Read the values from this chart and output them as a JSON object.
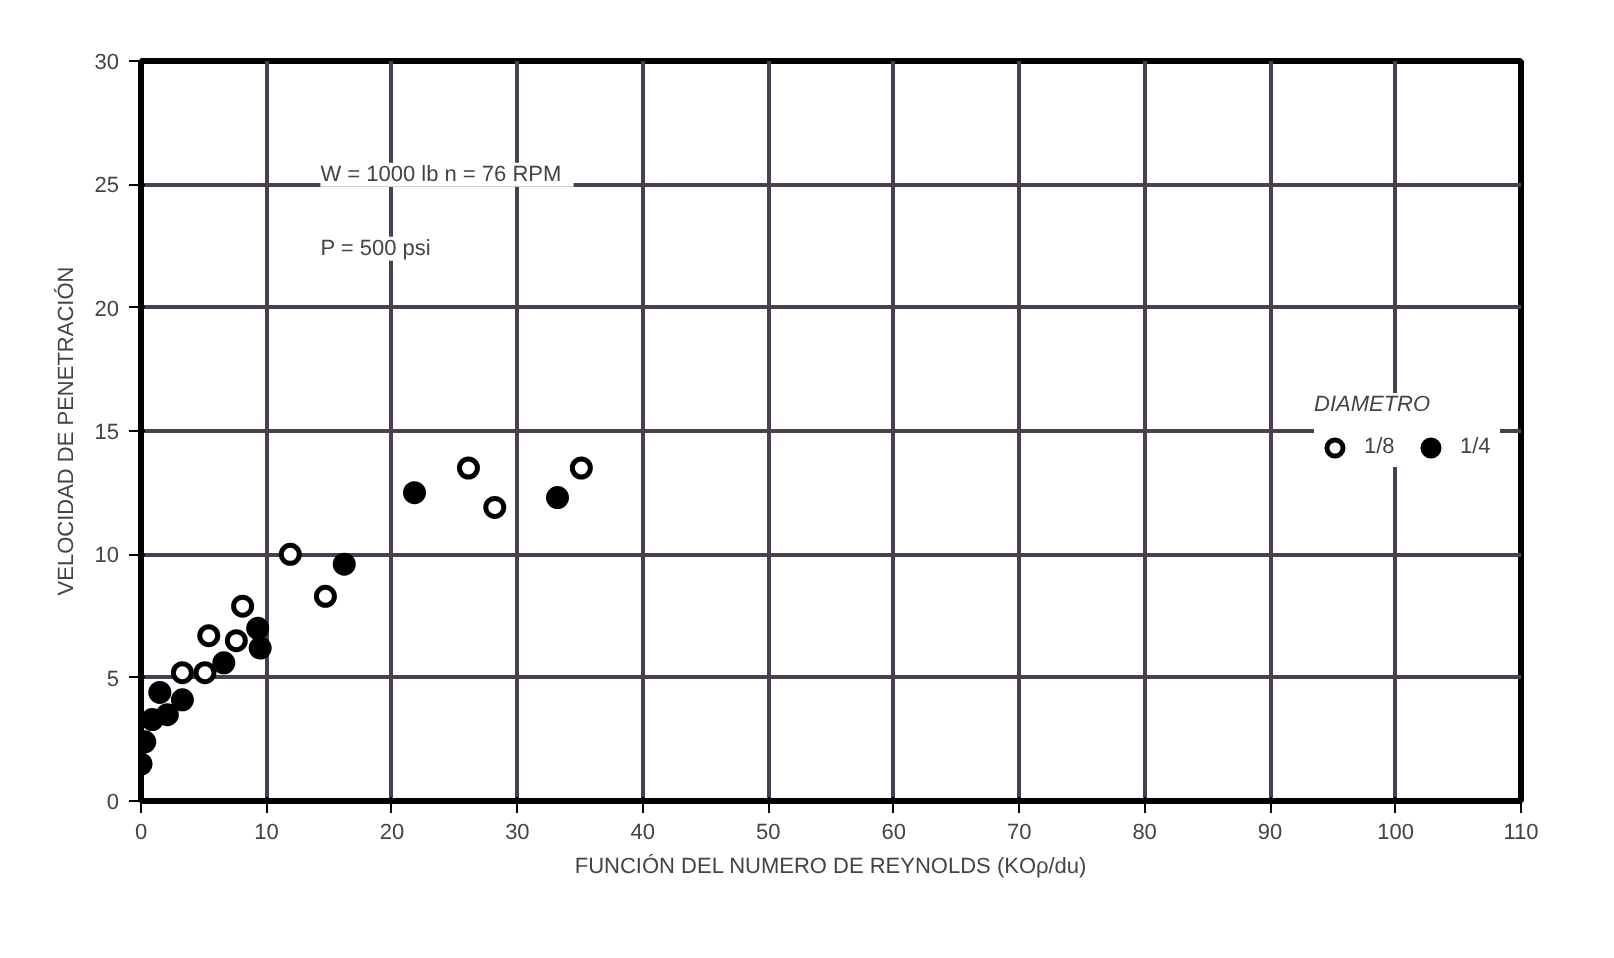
{
  "chart_data": {
    "type": "scatter",
    "xlabel": "FUNCIÓN DEL NUMERO DE REYNOLDS (KOρ/du)",
    "ylabel": "VELOCIDAD DE PENETRACIÓN",
    "annotations": [
      "W = 1000 lb   n = 76 RPM",
      "P = 500 psi"
    ],
    "legend_title": "DIAMETRO",
    "legend": "right",
    "grid": true,
    "marker": "circle",
    "xlim": [
      0,
      110
    ],
    "xticks": [
      0,
      10,
      20,
      30,
      40,
      50,
      60,
      70,
      80,
      90,
      100,
      110
    ],
    "ylim": [
      0,
      30
    ],
    "yticks": [
      0,
      5,
      10,
      15,
      20,
      25,
      30
    ],
    "series": [
      {
        "name": "1/8",
        "color": "#000000",
        "x": [
          26.1,
          35.1,
          28.2,
          11.9,
          14.7,
          5.4,
          7.6,
          3.3,
          5.1,
          8.1
        ],
        "values": [
          13.5,
          13.5,
          11.9,
          10.0,
          8.3,
          6.7,
          6.5,
          5.2,
          5.2,
          7.9
        ]
      },
      {
        "name": "1/4",
        "color": "#000000",
        "x": [
          21.8,
          33.2,
          16.2,
          9.3,
          9.5,
          6.6,
          1.5,
          3.3,
          0.9,
          2.1,
          0.3,
          0.0
        ],
        "values": [
          12.5,
          12.3,
          9.6,
          7.0,
          6.2,
          5.6,
          4.4,
          4.1,
          3.3,
          3.5,
          2.4,
          1.5
        ]
      }
    ]
  }
}
